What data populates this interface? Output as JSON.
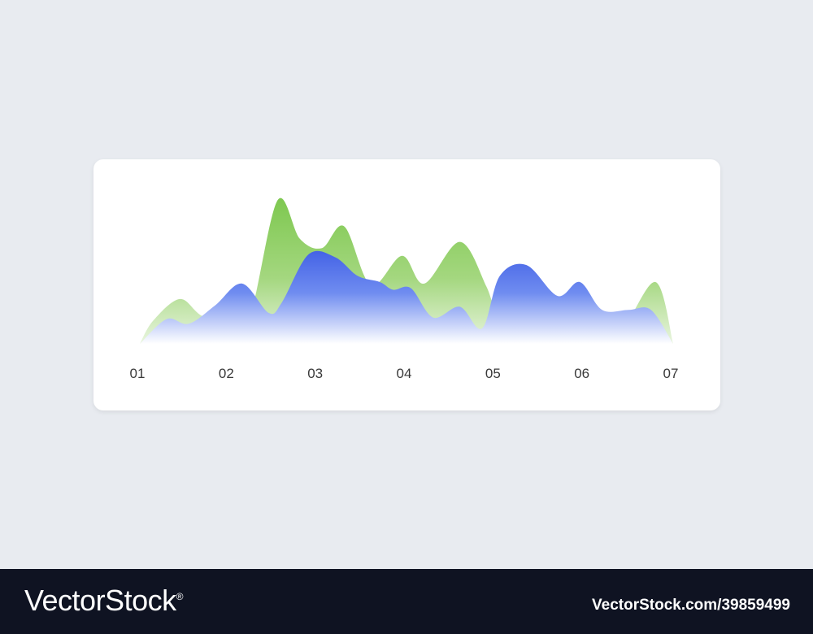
{
  "chart_data": {
    "type": "area",
    "x_ticks": [
      "01",
      "02",
      "03",
      "04",
      "05",
      "06",
      "07"
    ],
    "xlim": [
      1,
      7
    ],
    "ylim": [
      0,
      100
    ],
    "grid": false,
    "legend": "none",
    "series": [
      {
        "color": "#7ec850",
        "points": [
          [
            1.0,
            0
          ],
          [
            1.15,
            15
          ],
          [
            1.45,
            29
          ],
          [
            1.7,
            18
          ],
          [
            2.05,
            12
          ],
          [
            2.25,
            20
          ],
          [
            2.55,
            93
          ],
          [
            2.8,
            68
          ],
          [
            3.05,
            62
          ],
          [
            3.3,
            76
          ],
          [
            3.6,
            38
          ],
          [
            3.95,
            57
          ],
          [
            4.2,
            39
          ],
          [
            4.6,
            66
          ],
          [
            4.9,
            37
          ],
          [
            5.1,
            6
          ],
          [
            5.35,
            20
          ],
          [
            5.7,
            19
          ],
          [
            6.05,
            10
          ],
          [
            6.4,
            8
          ],
          [
            6.8,
            40
          ],
          [
            7.0,
            0
          ]
        ]
      },
      {
        "color": "#4a6ee6",
        "points": [
          [
            1.0,
            0
          ],
          [
            1.3,
            16
          ],
          [
            1.55,
            13
          ],
          [
            1.85,
            25
          ],
          [
            2.15,
            39
          ],
          [
            2.45,
            20
          ],
          [
            2.6,
            27
          ],
          [
            2.9,
            58
          ],
          [
            3.2,
            56
          ],
          [
            3.45,
            44
          ],
          [
            3.7,
            40
          ],
          [
            3.85,
            35
          ],
          [
            4.05,
            36
          ],
          [
            4.3,
            17
          ],
          [
            4.6,
            24
          ],
          [
            4.85,
            10
          ],
          [
            5.05,
            44
          ],
          [
            5.35,
            51
          ],
          [
            5.7,
            31
          ],
          [
            5.95,
            40
          ],
          [
            6.2,
            22
          ],
          [
            6.5,
            22
          ],
          [
            6.75,
            22
          ],
          [
            7.0,
            0
          ]
        ]
      }
    ]
  },
  "footer": {
    "brand": "VectorStock",
    "registered": "®",
    "image_id": "VectorStock.com/39859499"
  }
}
